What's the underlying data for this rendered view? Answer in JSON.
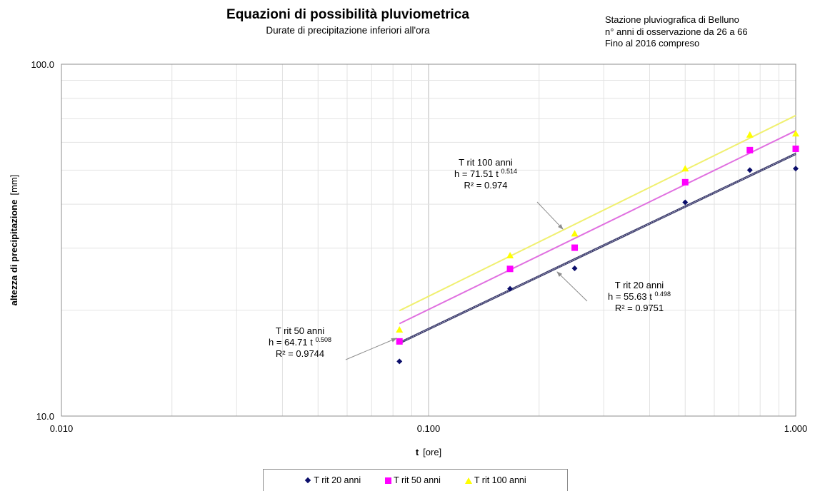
{
  "chart_data": {
    "type": "scatter",
    "title": "Equazioni di possibilità pluviometrica",
    "subtitle": "Durate di precipitazione inferiori all'ora",
    "station_info": [
      "Stazione pluviografica di Belluno",
      "n° anni di osservazione da 26 a 66",
      "Fino al 2016 compreso"
    ],
    "xlabel_bold": "t",
    "xlabel_unit": "[ore]",
    "ylabel_bold": "altezza di precipitazione",
    "ylabel_unit": "[mm]",
    "x_scale": "log",
    "y_scale": "log",
    "xlim": [
      0.01,
      1.0
    ],
    "ylim": [
      10.0,
      100.0
    ],
    "x_ticks": [
      0.01,
      0.1,
      1.0
    ],
    "x_tick_labels": [
      "0.010",
      "0.100",
      "1.000"
    ],
    "y_ticks": [
      10.0,
      100.0
    ],
    "y_tick_labels": [
      "10.0",
      "100.0"
    ],
    "grid": true,
    "legend_position": "bottom",
    "series": [
      {
        "name": "T rit 20 anni",
        "marker": "diamond",
        "color": "#0b0e6b",
        "x": [
          0.0833,
          0.1667,
          0.25,
          0.5,
          0.75,
          1.0
        ],
        "y": [
          14.3,
          23.0,
          26.3,
          40.5,
          50.0,
          50.5
        ],
        "trend": {
          "a": 55.63,
          "n": 0.498,
          "r2": "0.9751",
          "color": "#8080a8"
        },
        "annotation": {
          "lines": [
            "T rit  20 anni",
            "h = 55.63 t",
            "R² = 0.9751"
          ],
          "exp": "0.498",
          "position": "right"
        }
      },
      {
        "name": "T rit 50 anni",
        "marker": "square",
        "color": "#ff00ff",
        "x": [
          0.0833,
          0.1667,
          0.25,
          0.5,
          0.75,
          1.0
        ],
        "y": [
          16.3,
          26.2,
          30.1,
          46.2,
          57.0,
          57.5
        ],
        "trend": {
          "a": 64.71,
          "n": 0.508,
          "r2": "0.9744",
          "color": "#e070e0"
        },
        "annotation": {
          "lines": [
            "T rit 50 anni",
            "h = 64.71 t",
            "R² = 0.9744"
          ],
          "exp": "0.508",
          "position": "left"
        }
      },
      {
        "name": "T rit 100 anni",
        "marker": "triangle",
        "color": "#ffff00",
        "x": [
          0.0833,
          0.1667,
          0.25,
          0.5,
          0.75,
          1.0
        ],
        "y": [
          17.6,
          28.6,
          33.0,
          50.5,
          63.0,
          63.5
        ],
        "trend": {
          "a": 71.51,
          "n": 0.514,
          "r2": "0.974",
          "color": "#f0f070"
        },
        "annotation": {
          "lines": [
            "T rit 100 anni",
            "h = 71.51 t",
            "R² = 0.974"
          ],
          "exp": "0.514",
          "position": "top"
        }
      }
    ]
  }
}
